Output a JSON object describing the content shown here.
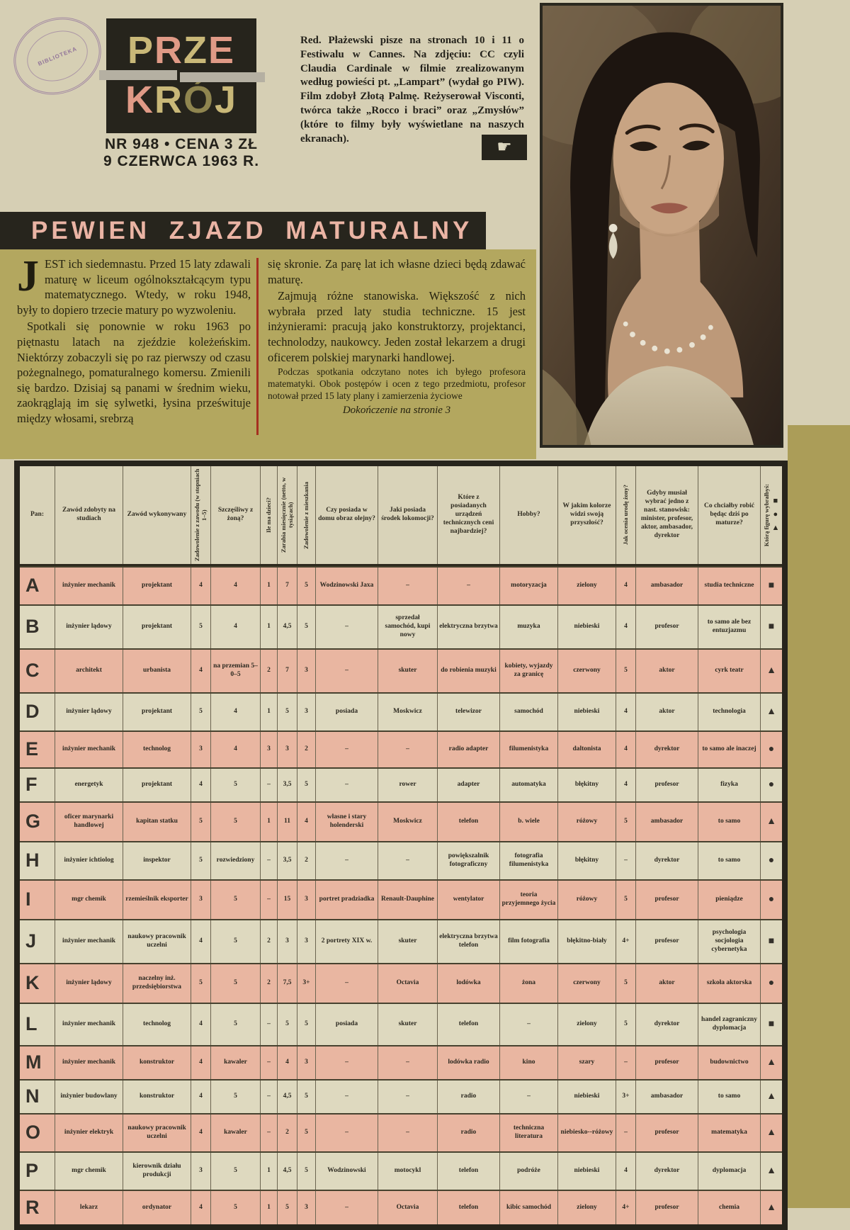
{
  "masthead": {
    "logo_line1": "PRZE",
    "logo_line2": "KRÓJ",
    "issue_line1": "NR 948 • CENA 3 ZŁ",
    "issue_line2": "9 CZERWCA 1963 R.",
    "stamp_text": "BIBLIOTEKA"
  },
  "intro": {
    "text": "Red. Płażewski pisze na stronach 10 i 11 o Festiwalu w Cannes. Na zdjęciu: CC czyli Claudia Cardinale w filmie zrealizowanym według powieści pt. „Lampart” (wydał go PIW). Film zdobył Złotą Palmę. Reżyserował Visconti, twórca także „Rocco i braci” oraz „Zmysłów” (które to filmy były wyświetlane na naszych ekranach).",
    "hand_glyph": "☛"
  },
  "article": {
    "headline": "PEWIEN ZJAZD MATURALNY",
    "dropcap": "J",
    "col1_p1": "EST ich siedemnastu. Przed 15 laty zdawali maturę w liceum ogólnokształcącym typu matematycznego. Wtedy, w roku 1948, były to dopiero trzecie matury po wyzwoleniu.",
    "col1_p2": "Spotkali się ponownie w roku 1963 po piętnastu latach na zjeździe koleżeńskim. Niektórzy zobaczyli się po raz pierwszy od czasu pożegnalnego, pomaturalnego komersu. Zmienili się bardzo. Dzisiaj są panami w średnim wieku, zaokrąglają im się sylwetki, łysina prześwituje między włosami, srebrzą",
    "col2_p1": "się skronie. Za parę lat ich własne dzieci będą zdawać maturę.",
    "col2_p2": "Zajmują różne stanowiska. Większość z nich wybrała przed laty studia techniczne. 15 jest inżynierami: pracują jako konstruktorzy, projektanci, technolodzy, naukowcy. Jeden został lekarzem a drugi oficerem polskiej marynarki handlowej.",
    "col2_p3": "Podczas spotkania odczytano notes ich byłego profesora matematyki. Obok postępów i ocen z tego przedmiotu, profesor notował przed 15 laty plany i zamierzenia życiowe",
    "continuation": "Dokończenie na stronie 3"
  },
  "table": {
    "headers": [
      {
        "label": "Pan:",
        "rotated": false
      },
      {
        "label": "Zawód zdobyty na studiach",
        "rotated": false
      },
      {
        "label": "Zawód wykonywany",
        "rotated": false
      },
      {
        "label": "Zadowolenie z zawodu (w stopniach 1–5)",
        "rotated": true
      },
      {
        "label": "Szczęśliwy z żoną?",
        "rotated": false
      },
      {
        "label": "Ile ma dzieci?",
        "rotated": true
      },
      {
        "label": "Zarabia miesięcznie (netto, w tysiącach)",
        "rotated": true
      },
      {
        "label": "Zadowolenie z mieszkania",
        "rotated": true
      },
      {
        "label": "Czy posiada w domu obraz olejny?",
        "rotated": false
      },
      {
        "label": "Jaki posiada środek lokomocji?",
        "rotated": false
      },
      {
        "label": "Które z posiadanych urządzeń technicznych ceni najbardziej?",
        "rotated": false
      },
      {
        "label": "Hobby?",
        "rotated": false
      },
      {
        "label": "W jakim kolorze widzi swoją przyszłość?",
        "rotated": false
      },
      {
        "label": "Jak ocenia urodę żony?",
        "rotated": true
      },
      {
        "label": "Gdyby musiał wybrać jedno z nast. stanowisk: minister, profesor, aktor, ambasador, dyrektor",
        "rotated": false
      },
      {
        "label": "Co chciałby robić będąc dziś po maturze?",
        "rotated": false
      },
      {
        "label": "Którą figurę wybrałbyś:",
        "rotated": true
      }
    ],
    "figure_shapes": [
      "■",
      "●",
      "▲"
    ],
    "rows": [
      {
        "letter": "A",
        "cells": [
          "inżynier mechanik",
          "projektant",
          "4",
          "4",
          "1",
          "7",
          "5",
          "Wodzinowski Jaxa",
          "–",
          "–",
          "motoryzacja",
          "zielony",
          "4",
          "ambasador",
          "studia techniczne",
          "■"
        ]
      },
      {
        "letter": "B",
        "cells": [
          "inżynier lądowy",
          "projektant",
          "5",
          "4",
          "1",
          "4,5",
          "5",
          "–",
          "sprzedał samochód, kupi nowy",
          "elektryczna brzytwa",
          "muzyka",
          "niebieski",
          "4",
          "profesor",
          "to samo ale bez entuzjazmu",
          "■"
        ]
      },
      {
        "letter": "C",
        "cells": [
          "architekt",
          "urbanista",
          "4",
          "na przemian 5–0–5",
          "2",
          "7",
          "3",
          "–",
          "skuter",
          "do robienia muzyki",
          "kobiety, wyjazdy za granicę",
          "czerwony",
          "5",
          "aktor",
          "cyrk teatr",
          "▲"
        ]
      },
      {
        "letter": "D",
        "cells": [
          "inżynier lądowy",
          "projektant",
          "5",
          "4",
          "1",
          "5",
          "3",
          "posiada",
          "Moskwicz",
          "telewizor",
          "samochód",
          "niebieski",
          "4",
          "aktor",
          "technologia",
          "▲"
        ]
      },
      {
        "letter": "E",
        "cells": [
          "inżynier mechanik",
          "technolog",
          "3",
          "4",
          "3",
          "3",
          "2",
          "–",
          "–",
          "radio adapter",
          "filumenistyka",
          "daltonista",
          "4",
          "dyrektor",
          "to samo ale inaczej",
          "●"
        ]
      },
      {
        "letter": "F",
        "cells": [
          "energetyk",
          "projektant",
          "4",
          "5",
          "–",
          "3,5",
          "5",
          "–",
          "rower",
          "adapter",
          "automatyka",
          "błękitny",
          "4",
          "profesor",
          "fizyka",
          "●"
        ]
      },
      {
        "letter": "G",
        "cells": [
          "oficer marynarki handlowej",
          "kapitan statku",
          "5",
          "5",
          "1",
          "11",
          "4",
          "własne i stary holenderski",
          "Moskwicz",
          "telefon",
          "b. wiele",
          "różowy",
          "5",
          "ambasador",
          "to samo",
          "▲"
        ]
      },
      {
        "letter": "H",
        "cells": [
          "inżynier ichtiolog",
          "inspektor",
          "5",
          "rozwiedziony",
          "–",
          "3,5",
          "2",
          "–",
          "–",
          "powiększalnik fotograficzny",
          "fotografia filumenistyka",
          "błękitny",
          "–",
          "dyrektor",
          "to samo",
          "●"
        ]
      },
      {
        "letter": "I",
        "cells": [
          "mgr chemik",
          "rzemieślnik eksporter",
          "3",
          "5",
          "–",
          "15",
          "3",
          "portret pradziadka",
          "Renault-Dauphine",
          "wentylator",
          "teoria przyjemnego życia",
          "różowy",
          "5",
          "profesor",
          "pieniądze",
          "●"
        ]
      },
      {
        "letter": "J",
        "cells": [
          "inżynier mechanik",
          "naukowy pracownik uczelni",
          "4",
          "5",
          "2",
          "3",
          "3",
          "2 portrety XIX w.",
          "skuter",
          "elektryczna brzytwa telefon",
          "film fotografia",
          "błękitno-biały",
          "4+",
          "profesor",
          "psychologia socjologia cybernetyka",
          "■"
        ]
      },
      {
        "letter": "K",
        "cells": [
          "inżynier lądowy",
          "naczelny inż. przedsiębiorstwa",
          "5",
          "5",
          "2",
          "7,5",
          "3+",
          "–",
          "Octavia",
          "lodówka",
          "żona",
          "czerwony",
          "5",
          "aktor",
          "szkoła aktorska",
          "●"
        ]
      },
      {
        "letter": "L",
        "cells": [
          "inżynier mechanik",
          "technolog",
          "4",
          "5",
          "–",
          "5",
          "5",
          "posiada",
          "skuter",
          "telefon",
          "–",
          "zielony",
          "5",
          "dyrektor",
          "handel zagraniczny dyplomacja",
          "■"
        ]
      },
      {
        "letter": "M",
        "cells": [
          "inżynier mechanik",
          "konstruktor",
          "4",
          "kawaler",
          "–",
          "4",
          "3",
          "–",
          "–",
          "lodówka radio",
          "kino",
          "szary",
          "–",
          "profesor",
          "budownictwo",
          "▲"
        ]
      },
      {
        "letter": "N",
        "cells": [
          "inżynier budowlany",
          "konstruktor",
          "4",
          "5",
          "–",
          "4,5",
          "5",
          "–",
          "–",
          "radio",
          "–",
          "niebieski",
          "3+",
          "ambasador",
          "to samo",
          "▲"
        ]
      },
      {
        "letter": "O",
        "cells": [
          "inżynier elektryk",
          "naukowy pracownik uczelni",
          "4",
          "kawaler",
          "–",
          "2",
          "5",
          "–",
          "–",
          "radio",
          "techniczna literatura",
          "niebiesko--różowy",
          "–",
          "profesor",
          "matematyka",
          "▲"
        ]
      },
      {
        "letter": "P",
        "cells": [
          "mgr chemik",
          "kierownik działu produkcji",
          "3",
          "5",
          "1",
          "4,5",
          "5",
          "Wodzinowski",
          "motocykl",
          "telefon",
          "podróże",
          "niebieski",
          "4",
          "dyrektor",
          "dyplomacja",
          "▲"
        ]
      },
      {
        "letter": "R",
        "cells": [
          "lekarz",
          "ordynator",
          "4",
          "5",
          "1",
          "5",
          "3",
          "–",
          "Octavia",
          "telefon",
          "kibic samochód",
          "zielony",
          "4+",
          "profesor",
          "chemia",
          "▲"
        ]
      }
    ]
  },
  "colors": {
    "paper": "#d6cfb4",
    "olive": "#b3a75f",
    "olive_strip": "#ab9d58",
    "black_bar": "#27251d",
    "headline_pink": "#eab4a4",
    "row_pink": "#e9b6a1",
    "row_cream": "#ded9bf",
    "red_rule": "#a5301f",
    "logo_tan": "#c9b878",
    "logo_salmon": "#e09a86"
  }
}
